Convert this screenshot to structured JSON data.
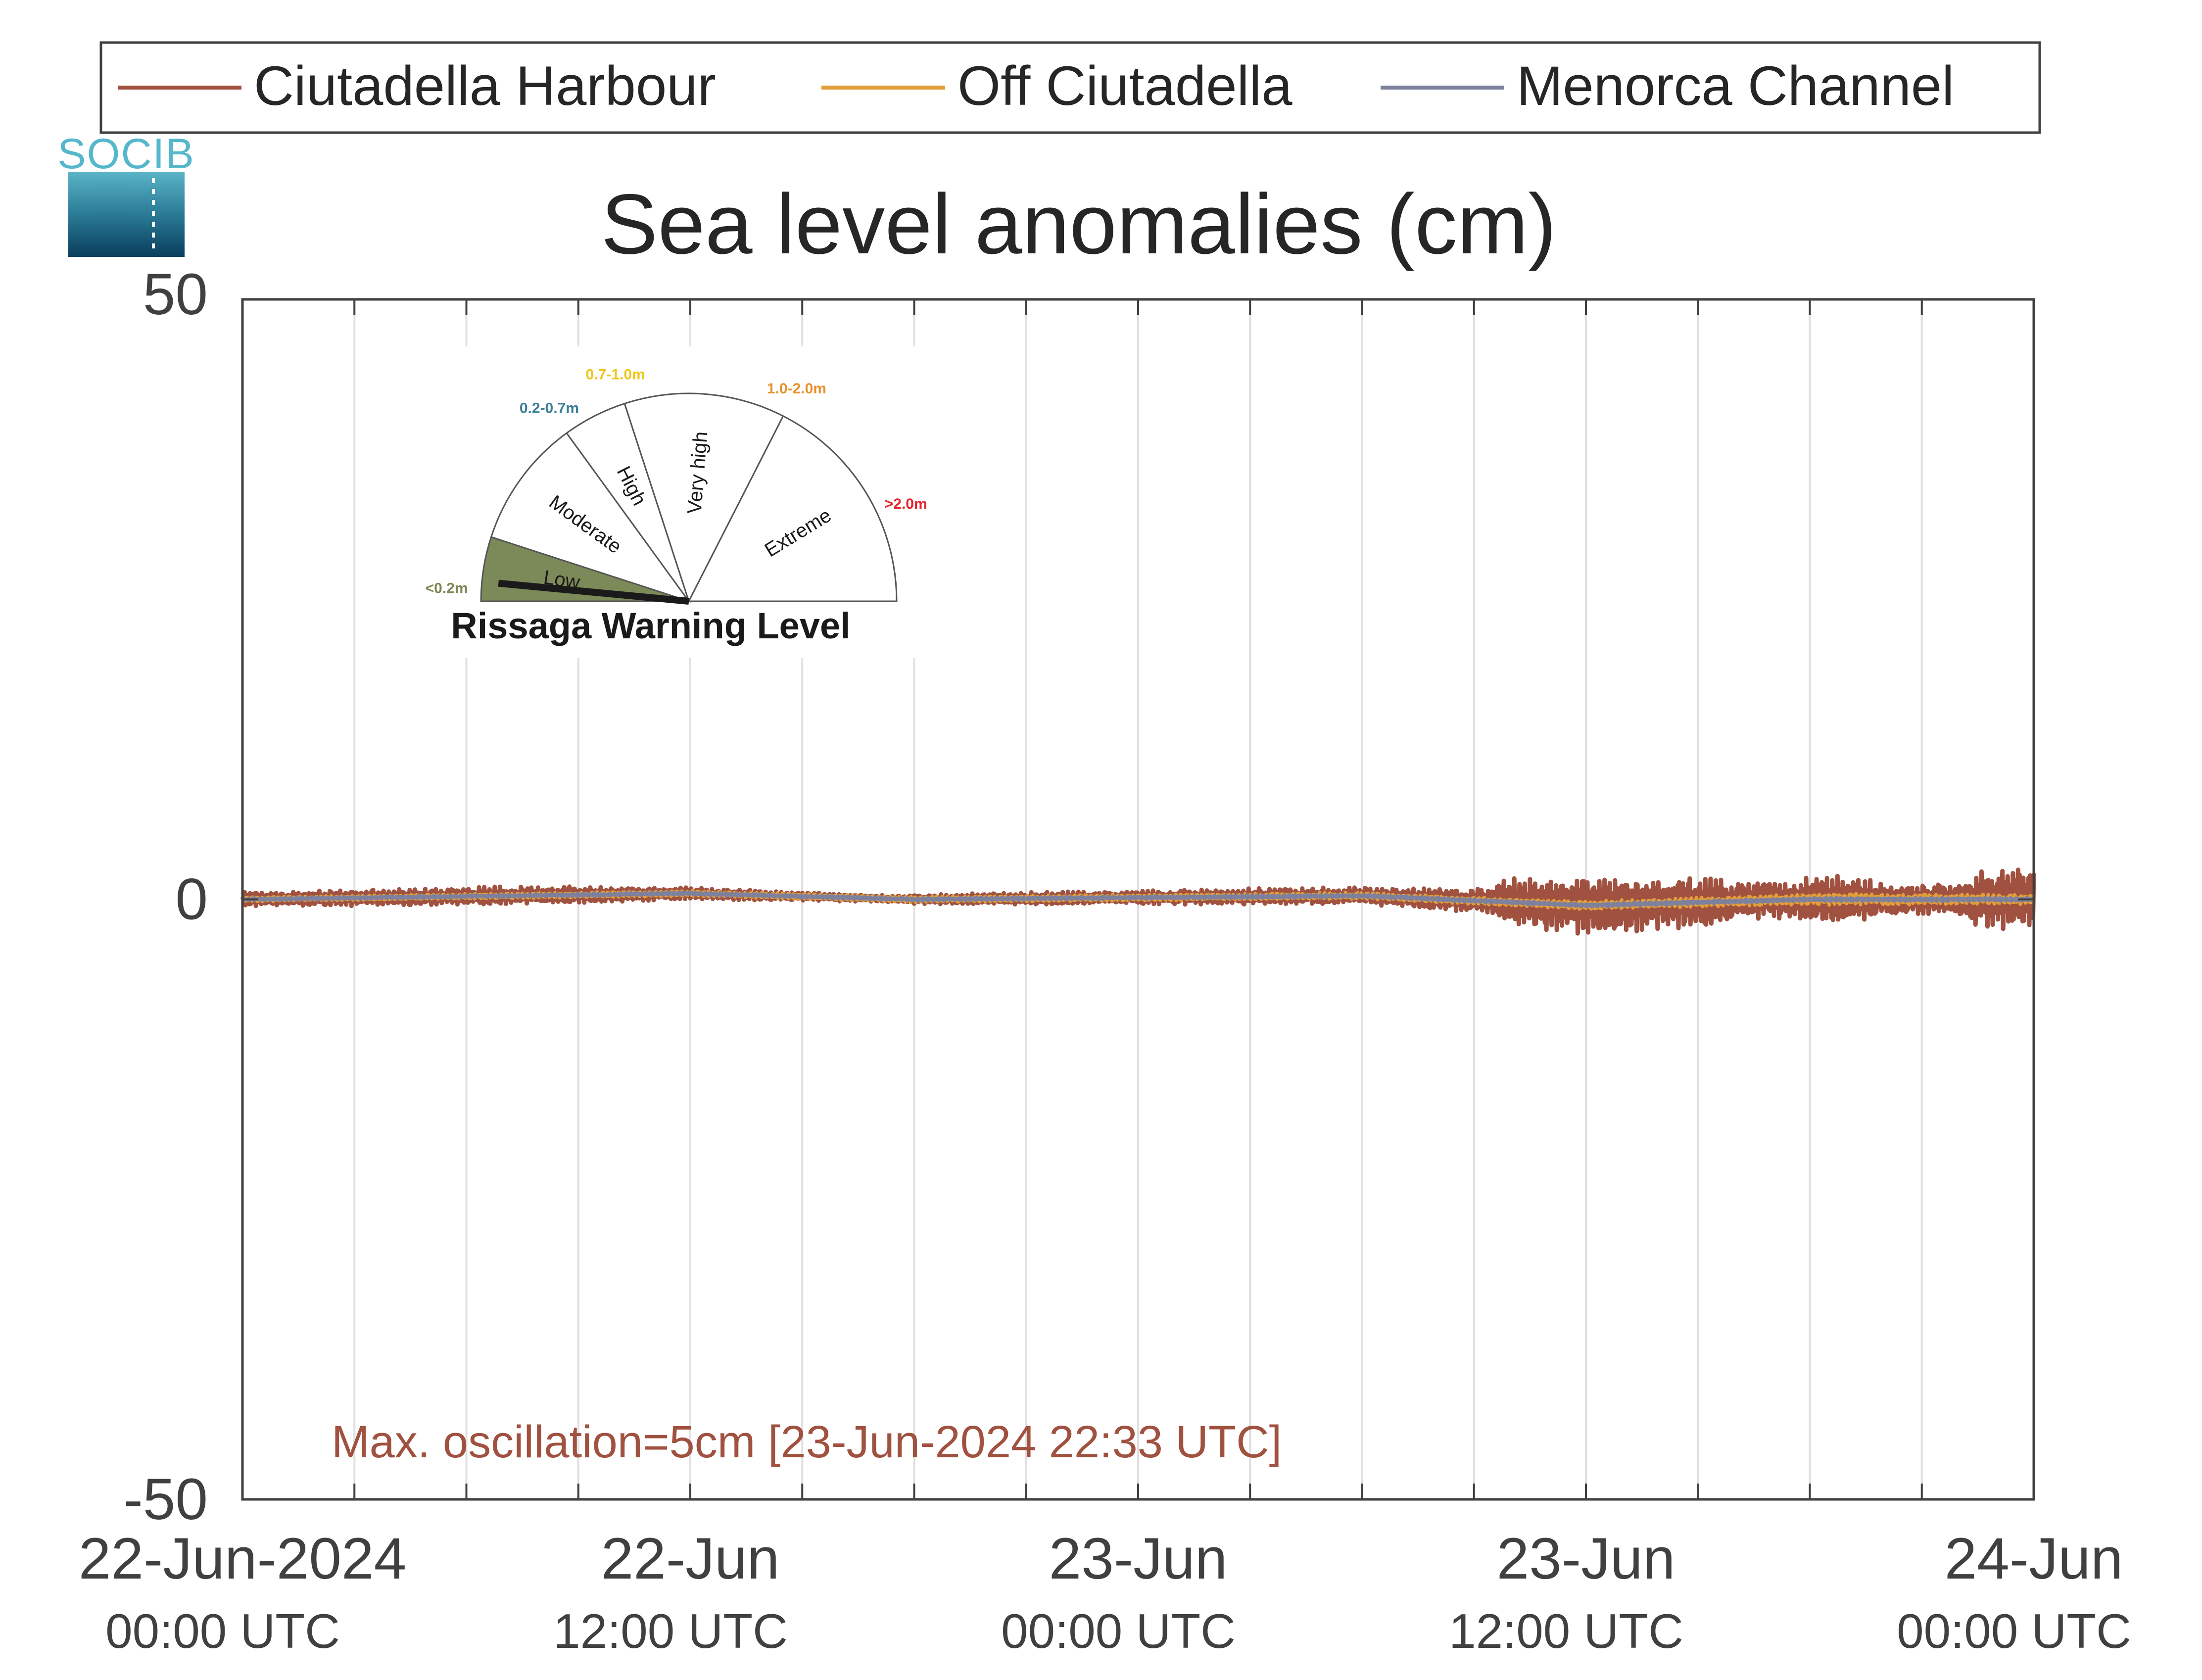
{
  "chart_data": {
    "type": "line",
    "title": "Sea level anomalies (cm)",
    "ylim": [
      -50,
      50
    ],
    "yticks": [
      -50,
      0,
      50
    ],
    "ytick_labels": [
      "-50",
      "0",
      "50"
    ],
    "xlim": [
      "2024-06-22T00:00",
      "2024-06-24T00:00"
    ],
    "xticks": [
      "2024-06-22T00:00",
      "2024-06-22T12:00",
      "2024-06-23T00:00",
      "2024-06-23T12:00",
      "2024-06-24T00:00"
    ],
    "xtick_labels": [
      {
        "date": "22-Jun-2024",
        "time": "00:00 UTC"
      },
      {
        "date": "22-Jun",
        "time": "12:00 UTC"
      },
      {
        "date": "23-Jun",
        "time": "00:00 UTC"
      },
      {
        "date": "23-Jun",
        "time": "12:00 UTC"
      },
      {
        "date": "24-Jun",
        "time": "00:00 UTC"
      }
    ],
    "minor_gridlines_hours": 3,
    "grid": true,
    "legend_position": "top",
    "series": [
      {
        "name": "Ciutadella Harbour",
        "color": "#a0513f",
        "amplitude_envelope_cm": [
          [
            "2024-06-22T00:00",
            0.6
          ],
          [
            "2024-06-22T04:00",
            0.7
          ],
          [
            "2024-06-22T08:00",
            0.8
          ],
          [
            "2024-06-22T12:00",
            0.5
          ],
          [
            "2024-06-22T17:00",
            0.3
          ],
          [
            "2024-06-22T20:00",
            0.5
          ],
          [
            "2024-06-23T00:00",
            0.6
          ],
          [
            "2024-06-23T03:00",
            0.7
          ],
          [
            "2024-06-23T06:00",
            0.7
          ],
          [
            "2024-06-23T09:00",
            1.0
          ],
          [
            "2024-06-23T10:00",
            2.0
          ],
          [
            "2024-06-23T12:00",
            2.5
          ],
          [
            "2024-06-23T15:00",
            2.2
          ],
          [
            "2024-06-23T17:00",
            1.5
          ],
          [
            "2024-06-23T19:00",
            2.3
          ],
          [
            "2024-06-23T20:00",
            1.3
          ],
          [
            "2024-06-23T22:00",
            1.4
          ],
          [
            "2024-06-23T22:33",
            2.5
          ],
          [
            "2024-06-24T00:00",
            2.7
          ]
        ]
      },
      {
        "name": "Off Ciutadella",
        "color": "#e39e3a",
        "amplitude_envelope_cm": [
          [
            "2024-06-22T00:00",
            0.2
          ],
          [
            "2024-06-23T09:00",
            0.3
          ],
          [
            "2024-06-23T19:00",
            0.5
          ],
          [
            "2024-06-24T00:00",
            0.4
          ]
        ]
      },
      {
        "name": "Menorca Channel",
        "color": "#7e819d",
        "amplitude_envelope_cm": [
          [
            "2024-06-22T00:00",
            0.15
          ],
          [
            "2024-06-24T00:00",
            0.2
          ]
        ]
      }
    ],
    "baseline_offset_cm": [
      [
        "2024-06-22T00:00",
        0.0
      ],
      [
        "2024-06-22T12:00",
        0.5
      ],
      [
        "2024-06-22T18:00",
        0.0
      ],
      [
        "2024-06-23T06:00",
        0.3
      ],
      [
        "2024-06-23T12:00",
        -0.5
      ],
      [
        "2024-06-23T18:00",
        0.0
      ],
      [
        "2024-06-24T00:00",
        0.0
      ]
    ],
    "annotation": "Max. oscillation=5cm [23-Jun-2024 22:33 UTC]",
    "annotation_color": "#a0513f"
  },
  "logo": {
    "text": "SOCIB"
  },
  "rissaga_gauge": {
    "title": "Rissaga Warning Level",
    "current_level": "Low",
    "needle_fraction": 0.03,
    "sectors": [
      {
        "name": "Low",
        "range": "<0.2m",
        "range_color": "#7d8753",
        "fill": "#7b8a58",
        "fraction": 0.1
      },
      {
        "name": "Moderate",
        "range": "0.2-0.7m",
        "range_color": "#3c7f95",
        "fill": "#ffffff",
        "fraction": 0.2
      },
      {
        "name": "High",
        "range": "0.7-1.0m",
        "range_color": "#f0c419",
        "fill": "#ffffff",
        "fraction": 0.1
      },
      {
        "name": "Very high",
        "range": "1.0-2.0m",
        "range_color": "#e8912b",
        "fill": "#ffffff",
        "fraction": 0.25
      },
      {
        "name": "Extreme",
        "range": ">2.0m",
        "range_color": "#e4262c",
        "fill": "#ffffff",
        "fraction": 0.35
      }
    ]
  }
}
